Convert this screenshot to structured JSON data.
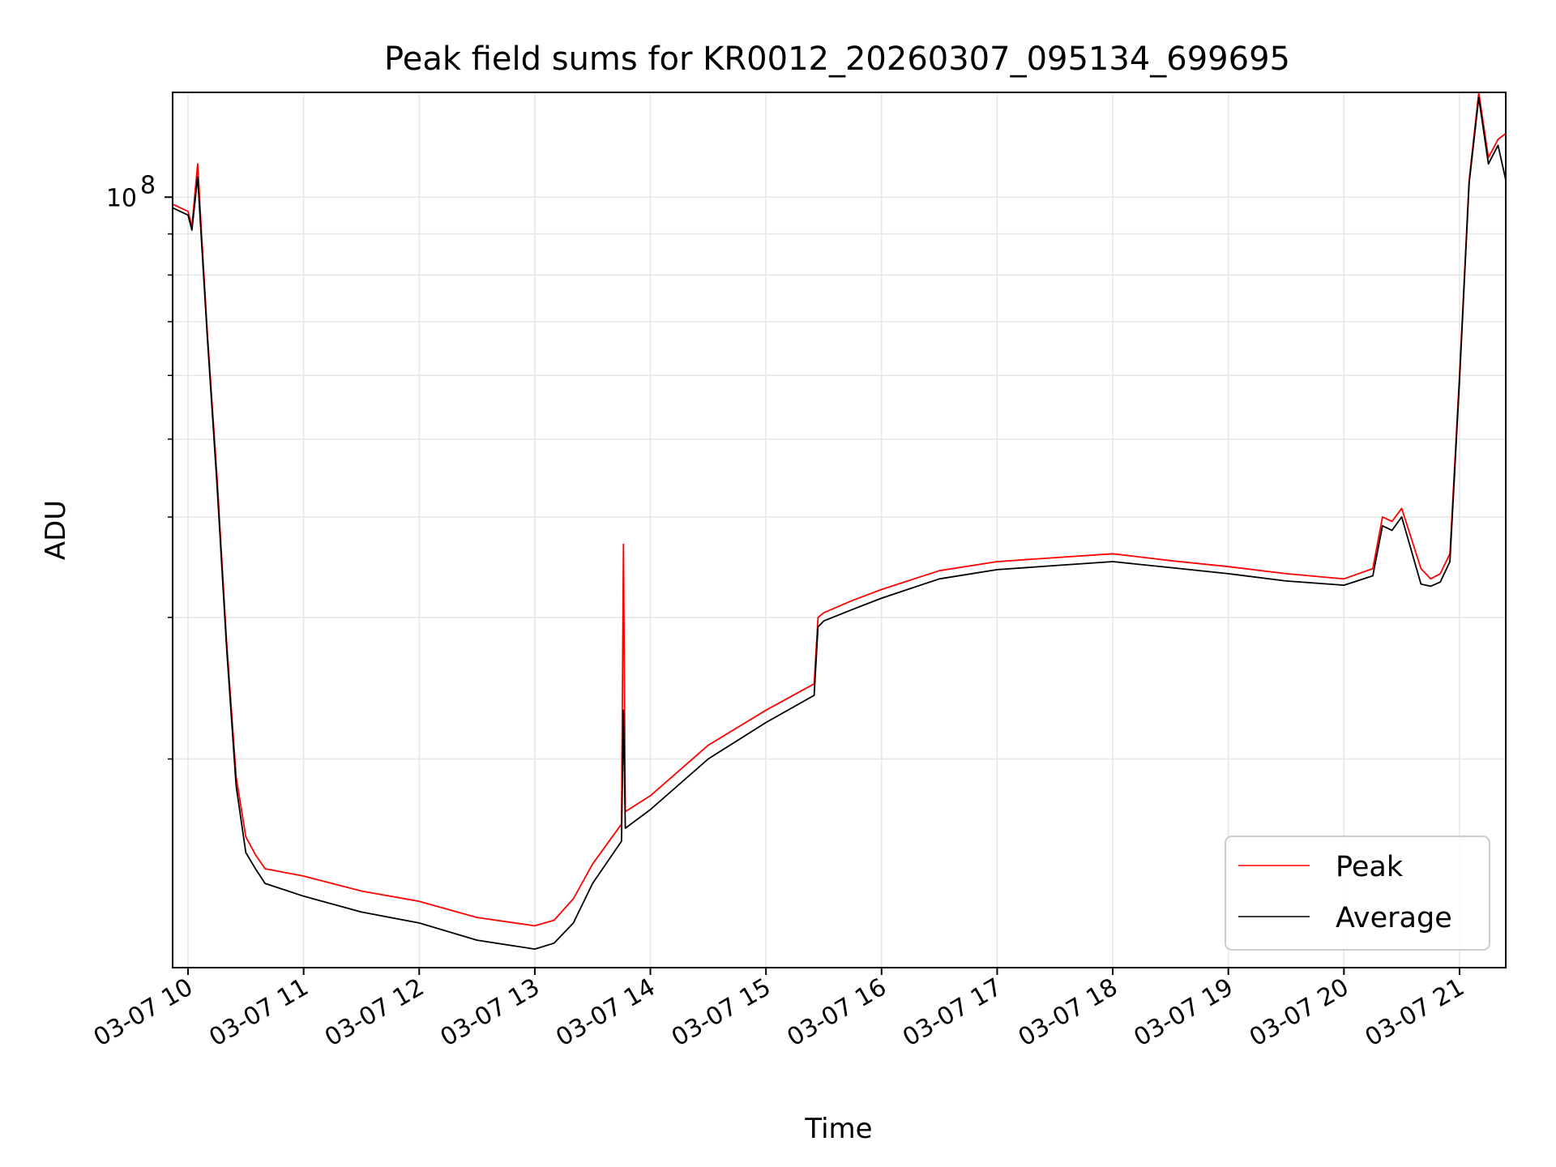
{
  "chart_data": {
    "type": "line",
    "title": "Peak field sums for KR0012_20260307_095134_699695",
    "xlabel": "Time",
    "ylabel": "ADU",
    "yscale": "log",
    "xlim": [
      "03-07 09:52",
      "03-07 21:24"
    ],
    "ylim": [
      11000000,
      135000000
    ],
    "x_ticks": [
      "03-07 10",
      "03-07 11",
      "03-07 12",
      "03-07 13",
      "03-07 14",
      "03-07 15",
      "03-07 16",
      "03-07 17",
      "03-07 18",
      "03-07 19",
      "03-07 20",
      "03-07 21"
    ],
    "y_major_tick": {
      "value": 100000000,
      "base": "10",
      "exp": "8"
    },
    "y_minor_ticks": [
      20000000,
      30000000,
      40000000,
      50000000,
      60000000,
      70000000,
      80000000,
      90000000
    ],
    "grid": true,
    "legend_position": "lower right",
    "series": [
      {
        "name": "Peak",
        "color": "#ff0000",
        "x": [
          "09:52",
          "10:00",
          "10:02",
          "10:05",
          "10:07",
          "10:10",
          "10:15",
          "10:20",
          "10:25",
          "10:30",
          "10:35",
          "10:40",
          "11:00",
          "11:30",
          "12:00",
          "12:30",
          "13:00",
          "13:10",
          "13:20",
          "13:30",
          "13:45",
          "13:46",
          "13:47",
          "14:00",
          "14:30",
          "15:00",
          "15:25",
          "15:27",
          "15:30",
          "15:45",
          "16:00",
          "16:30",
          "17:00",
          "17:30",
          "18:00",
          "18:30",
          "19:00",
          "19:30",
          "20:00",
          "20:15",
          "20:20",
          "20:25",
          "20:30",
          "20:40",
          "20:45",
          "20:50",
          "20:55",
          "21:00",
          "21:05",
          "21:10",
          "21:15",
          "21:20",
          "21:24"
        ],
        "y": [
          98000000,
          96000000,
          92000000,
          110000000,
          90000000,
          68000000,
          45000000,
          28000000,
          19000000,
          16000000,
          15200000,
          14600000,
          14300000,
          13700000,
          13300000,
          12700000,
          12400000,
          12600000,
          13400000,
          14800000,
          16600000,
          37000000,
          17200000,
          18000000,
          20800000,
          23000000,
          24800000,
          30000000,
          30400000,
          31500000,
          32500000,
          34300000,
          35200000,
          35600000,
          36000000,
          35300000,
          34700000,
          34000000,
          33500000,
          34500000,
          40000000,
          39500000,
          41000000,
          34500000,
          33500000,
          34000000,
          36000000,
          60000000,
          105000000,
          135000000,
          112000000,
          118000000,
          120000000
        ]
      },
      {
        "name": "Average",
        "color": "#000000",
        "x": [
          "09:52",
          "10:00",
          "10:02",
          "10:05",
          "10:07",
          "10:10",
          "10:15",
          "10:20",
          "10:25",
          "10:30",
          "10:35",
          "10:40",
          "11:00",
          "11:30",
          "12:00",
          "12:30",
          "13:00",
          "13:10",
          "13:20",
          "13:30",
          "13:45",
          "13:46",
          "13:47",
          "14:00",
          "14:30",
          "15:00",
          "15:25",
          "15:27",
          "15:30",
          "15:45",
          "16:00",
          "16:30",
          "17:00",
          "17:30",
          "18:00",
          "18:30",
          "19:00",
          "19:30",
          "20:00",
          "20:15",
          "20:20",
          "20:25",
          "20:30",
          "20:40",
          "20:45",
          "20:50",
          "20:55",
          "21:00",
          "21:05",
          "21:10",
          "21:15",
          "21:20",
          "21:24"
        ],
        "y": [
          97000000,
          95000000,
          91000000,
          106000000,
          88000000,
          67000000,
          44000000,
          27500000,
          18500000,
          15300000,
          14600000,
          14000000,
          13500000,
          12900000,
          12500000,
          11900000,
          11600000,
          11800000,
          12500000,
          14000000,
          15800000,
          23000000,
          16400000,
          17300000,
          20000000,
          22200000,
          24000000,
          29200000,
          29700000,
          30700000,
          31700000,
          33500000,
          34400000,
          34800000,
          35200000,
          34600000,
          34000000,
          33300000,
          32900000,
          33800000,
          39000000,
          38500000,
          40000000,
          33000000,
          32800000,
          33200000,
          35200000,
          59000000,
          104000000,
          133000000,
          110000000,
          116000000,
          105000000
        ]
      }
    ]
  }
}
